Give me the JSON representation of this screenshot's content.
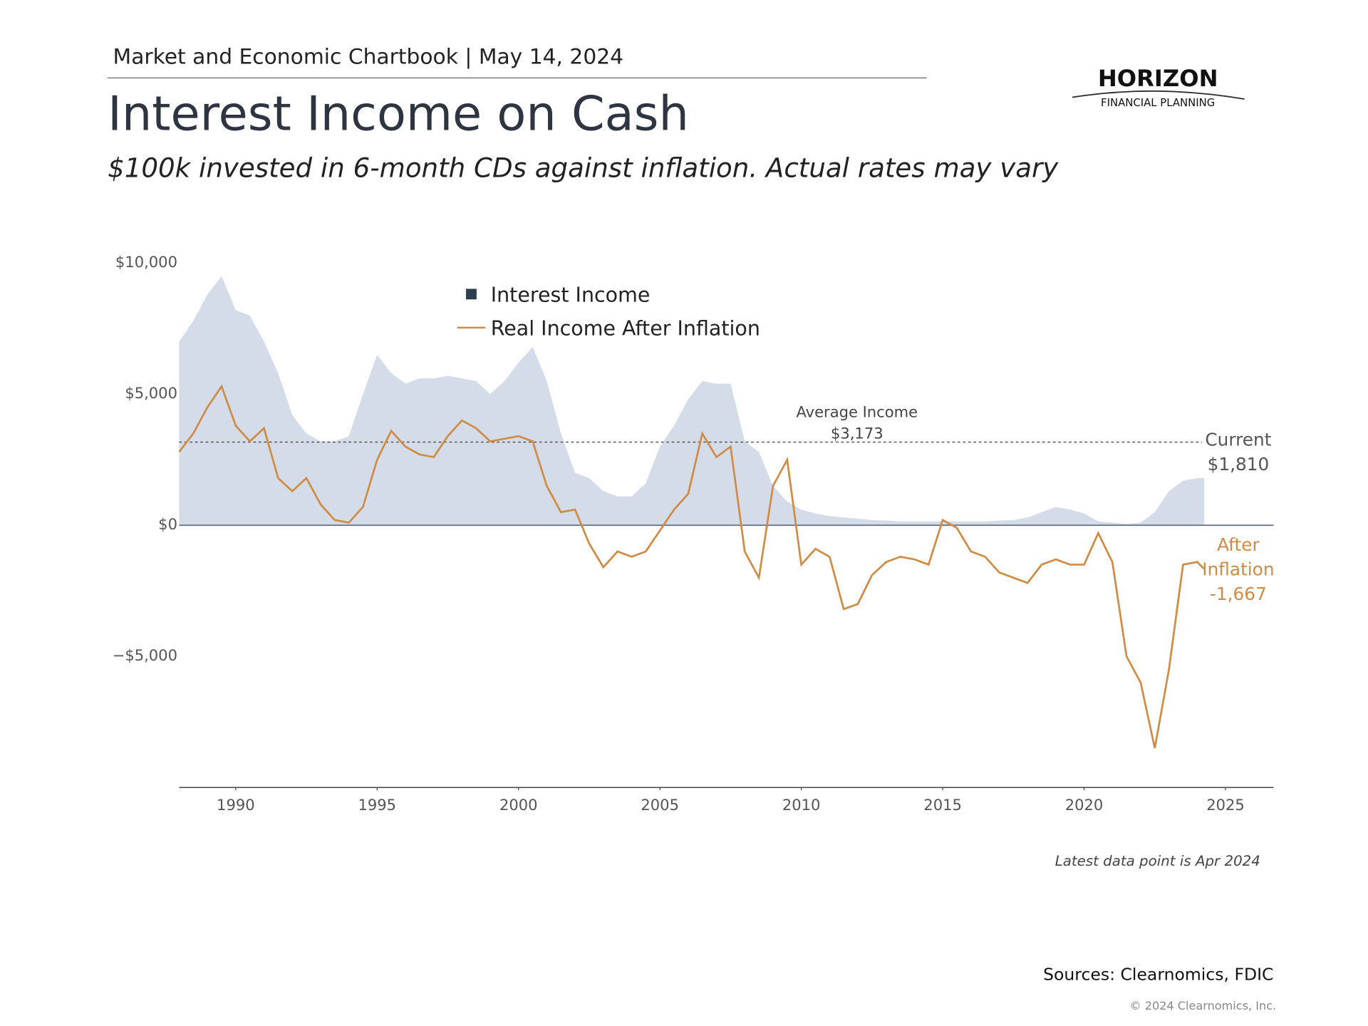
{
  "header": "Market and Economic Chartbook | May 14, 2024",
  "logo": {
    "name": "HORIZON",
    "tagline": "FINANCIAL PLANNING"
  },
  "chart_data": {
    "type": "area_line",
    "title": "Interest Income on Cash",
    "subtitle": "$100k invested in 6-month CDs against inflation. Actual rates may vary",
    "x": [
      1988.0,
      1988.5,
      1989.0,
      1989.5,
      1990.0,
      1990.5,
      1991.0,
      1991.5,
      1992.0,
      1992.5,
      1993.0,
      1993.5,
      1994.0,
      1994.5,
      1995.0,
      1995.5,
      1996.0,
      1996.5,
      1997.0,
      1997.5,
      1998.0,
      1998.5,
      1999.0,
      1999.5,
      2000.0,
      2000.5,
      2001.0,
      2001.5,
      2002.0,
      2002.5,
      2003.0,
      2003.5,
      2004.0,
      2004.5,
      2005.0,
      2005.5,
      2006.0,
      2006.5,
      2007.0,
      2007.5,
      2008.0,
      2008.5,
      2009.0,
      2009.5,
      2010.0,
      2010.5,
      2011.0,
      2011.5,
      2012.0,
      2012.5,
      2013.0,
      2013.5,
      2014.0,
      2014.5,
      2015.0,
      2015.5,
      2016.0,
      2016.5,
      2017.0,
      2017.5,
      2018.0,
      2018.5,
      2019.0,
      2019.5,
      2020.0,
      2020.5,
      2021.0,
      2021.5,
      2022.0,
      2022.5,
      2023.0,
      2023.5,
      2024.0,
      2024.25
    ],
    "series": [
      {
        "name": "Interest Income",
        "color": "#d3dce8",
        "values": [
          7000,
          7800,
          8800,
          9500,
          8200,
          8000,
          7000,
          5800,
          4200,
          3500,
          3200,
          3200,
          3400,
          5000,
          6500,
          5800,
          5400,
          5600,
          5600,
          5700,
          5600,
          5500,
          5000,
          5500,
          6200,
          6800,
          5500,
          3500,
          2000,
          1800,
          1300,
          1100,
          1100,
          1600,
          3000,
          3800,
          4800,
          5500,
          5400,
          5400,
          3200,
          2800,
          1500,
          900,
          600,
          450,
          350,
          300,
          250,
          200,
          180,
          150,
          150,
          150,
          150,
          150,
          150,
          150,
          180,
          200,
          300,
          500,
          700,
          600,
          450,
          150,
          100,
          50,
          100,
          500,
          1300,
          1700,
          1800,
          1810
        ]
      },
      {
        "name": "Real Income After Inflation",
        "color": "#d08c45",
        "values": [
          2800,
          3500,
          4500,
          5300,
          3800,
          3200,
          3700,
          1800,
          1300,
          1800,
          800,
          200,
          100,
          700,
          2500,
          3600,
          3000,
          2700,
          2600,
          3400,
          4000,
          3700,
          3200,
          3300,
          3400,
          3200,
          1500,
          500,
          600,
          -700,
          -1600,
          -1000,
          -1200,
          -1000,
          -200,
          600,
          1200,
          3500,
          2600,
          3000,
          -1000,
          -2000,
          1500,
          2500,
          -1500,
          -900,
          -1200,
          -3200,
          -3000,
          -1900,
          -1400,
          -1200,
          -1300,
          -1500,
          200,
          -100,
          -1000,
          -1200,
          -1800,
          -2000,
          -2200,
          -1500,
          -1300,
          -1500,
          -1500,
          -300,
          -1400,
          -5000,
          -6000,
          -8500,
          -5500,
          -1500,
          -1400,
          -1667
        ]
      }
    ],
    "xlim": [
      1988,
      2026.7
    ],
    "xticks": [
      1990,
      1995,
      2000,
      2005,
      2010,
      2015,
      2020,
      2025
    ],
    "ylim": [
      -10000,
      10600
    ],
    "yticks": [
      {
        "value": 10000,
        "label": "$10,000"
      },
      {
        "value": 5000,
        "label": "$5,000"
      },
      {
        "value": 0,
        "label": "$0"
      },
      {
        "value": -5000,
        "label": "−$5,000"
      }
    ],
    "average": {
      "text": "Average Income",
      "value": 3173,
      "value_label": "$3,173"
    },
    "current": {
      "text": "Current",
      "value": 1810,
      "value_label": "$1,810"
    },
    "after": {
      "text": [
        "After",
        "Inflation"
      ],
      "value": -1667,
      "value_label": "-1,667"
    },
    "note": "Latest data point is Apr 2024"
  },
  "sources": "Sources: Clearnomics, FDIC",
  "copyright": "© 2024 Clearnomics, Inc."
}
